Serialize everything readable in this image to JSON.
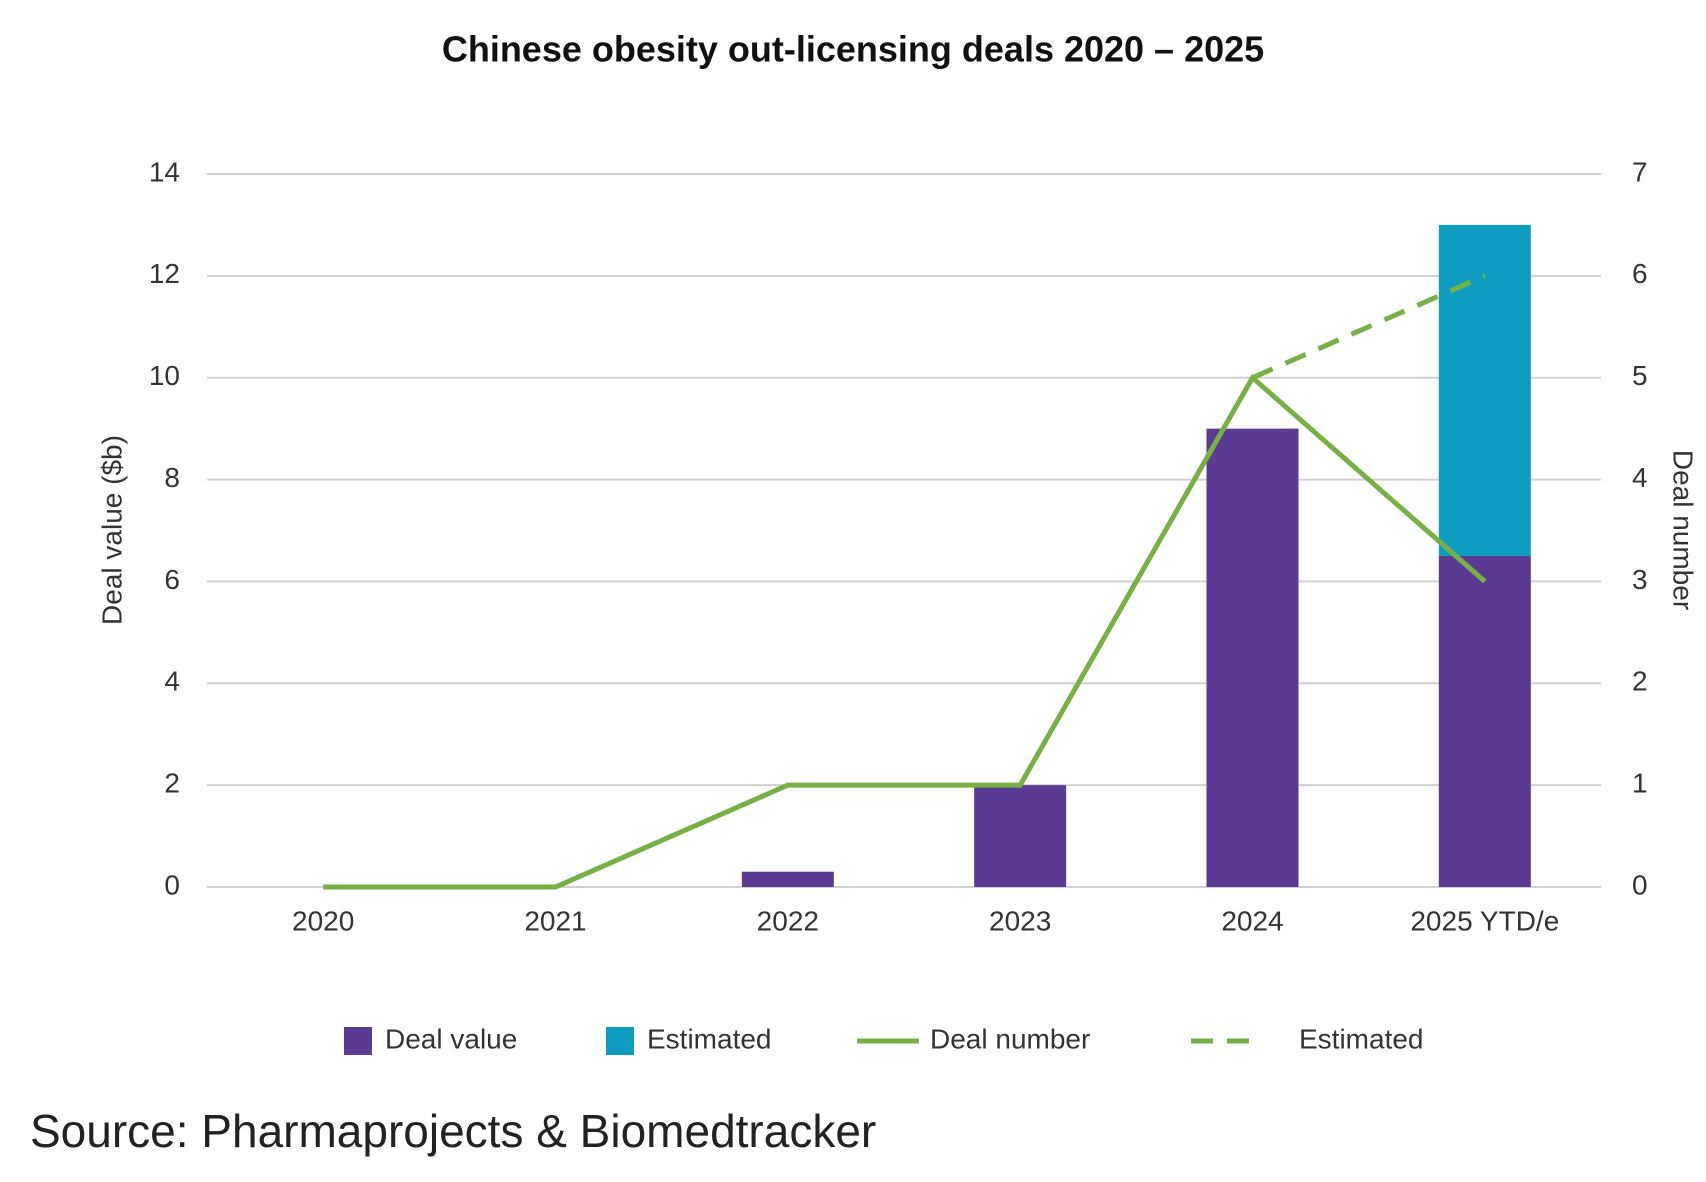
{
  "chart_data": {
    "type": "bar",
    "title": "Chinese obesity out-licensing deals 2020 – 2025",
    "categories": [
      "2020",
      "2021",
      "2022",
      "2023",
      "2024",
      "2025 YTD/e"
    ],
    "series": [
      {
        "name": "Deal value",
        "type": "bar",
        "color": "#5b3a93",
        "values": [
          0,
          0,
          0.3,
          2,
          9,
          6.5
        ]
      },
      {
        "name": "Estimated",
        "type": "bar",
        "color": "#0e9cc1",
        "values": [
          null,
          null,
          null,
          null,
          null,
          6.5
        ]
      },
      {
        "name": "Deal number",
        "type": "line",
        "axis": "y2",
        "color": "#77b143",
        "values": [
          0,
          0,
          1,
          1,
          5,
          3
        ]
      },
      {
        "name": "Estimated",
        "type": "line",
        "axis": "y2",
        "color": "#77b143",
        "dashed": true,
        "values": [
          null,
          null,
          null,
          null,
          5,
          6
        ]
      }
    ],
    "ylabel": "Deal value ($b)",
    "y2label": "Deal number",
    "ylim": [
      0,
      14
    ],
    "yticks": [
      0,
      2,
      4,
      6,
      8,
      10,
      12,
      14
    ],
    "y2lim": [
      0,
      7
    ],
    "y2ticks": [
      0,
      1,
      2,
      3,
      4,
      5,
      6,
      7
    ],
    "grid": true,
    "legend": "bottom",
    "source": "Source: Pharmaprojects & Biomedtracker"
  }
}
